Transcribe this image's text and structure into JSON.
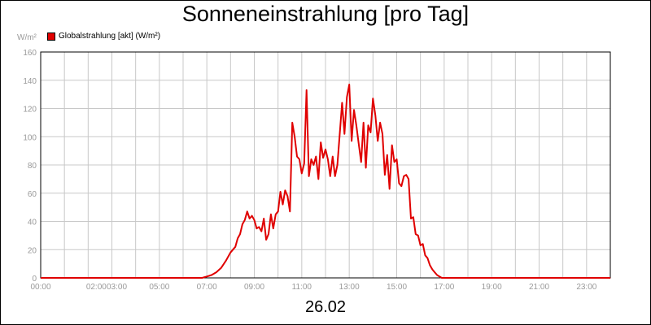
{
  "chart_data": {
    "type": "line",
    "title": "Sonneneinstrahlung [pro Tag]",
    "ylabel": "W/m²",
    "footer": "26.02",
    "ylim": [
      0,
      160
    ],
    "yticks": [
      0,
      20,
      40,
      60,
      80,
      100,
      120,
      140,
      160
    ],
    "xlim": [
      0,
      24
    ],
    "xticks": [
      "00:00",
      "02:00",
      "03:00",
      "05:00",
      "07:00",
      "09:00",
      "11:00",
      "13:00",
      "15:00",
      "17:00",
      "19:00",
      "21:00",
      "23:00"
    ],
    "grid": true,
    "legend_position": "top-left",
    "series": [
      {
        "name": "Globalstrahlung [akt] (W/m²)",
        "color": "#e00000",
        "x": [
          0,
          6.8,
          7.0,
          7.2,
          7.4,
          7.6,
          7.8,
          8.0,
          8.2,
          8.3,
          8.4,
          8.5,
          8.6,
          8.7,
          8.8,
          8.9,
          9.0,
          9.1,
          9.2,
          9.3,
          9.4,
          9.5,
          9.6,
          9.7,
          9.8,
          9.9,
          10.0,
          10.1,
          10.2,
          10.3,
          10.4,
          10.5,
          10.6,
          10.7,
          10.8,
          10.9,
          11.0,
          11.1,
          11.2,
          11.3,
          11.4,
          11.5,
          11.6,
          11.7,
          11.8,
          11.9,
          12.0,
          12.1,
          12.2,
          12.3,
          12.4,
          12.5,
          12.6,
          12.7,
          12.8,
          12.9,
          13.0,
          13.1,
          13.2,
          13.3,
          13.4,
          13.5,
          13.6,
          13.7,
          13.8,
          13.9,
          14.0,
          14.1,
          14.2,
          14.3,
          14.4,
          14.5,
          14.6,
          14.7,
          14.8,
          14.9,
          15.0,
          15.1,
          15.2,
          15.3,
          15.4,
          15.5,
          15.6,
          15.7,
          15.8,
          15.9,
          16.0,
          16.1,
          16.2,
          16.3,
          16.4,
          16.5,
          16.6,
          16.7,
          16.8,
          16.9,
          17.0,
          17.1,
          17.2,
          17.3,
          17.4,
          17.6,
          17.8,
          18.0,
          24
        ],
        "y": [
          0,
          0,
          1,
          2,
          4,
          7,
          12,
          18,
          22,
          28,
          31,
          38,
          41,
          47,
          42,
          44,
          41,
          35,
          36,
          33,
          42,
          27,
          31,
          45,
          35,
          45,
          47,
          61,
          52,
          62,
          58,
          47,
          110,
          100,
          86,
          84,
          74,
          81,
          133,
          72,
          84,
          80,
          86,
          70,
          96,
          85,
          91,
          84,
          72,
          86,
          72,
          80,
          102,
          124,
          102,
          128,
          137,
          97,
          119,
          108,
          95,
          82,
          110,
          78,
          108,
          103,
          127,
          115,
          97,
          110,
          102,
          73,
          87,
          63,
          94,
          82,
          84,
          67,
          65,
          72,
          73,
          70,
          42,
          43,
          31,
          30,
          23,
          24,
          16,
          14,
          9,
          6,
          4,
          2,
          1,
          0,
          0,
          0,
          0,
          0,
          0,
          0,
          0,
          0,
          0
        ]
      }
    ]
  }
}
